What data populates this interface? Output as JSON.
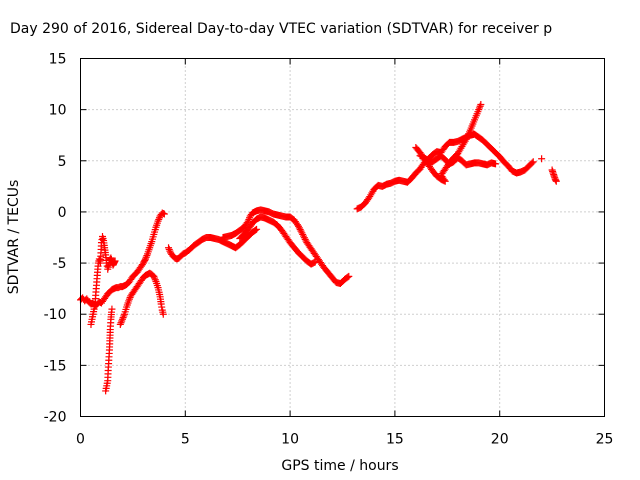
{
  "chart_data": {
    "type": "scatter",
    "title": "Day 290 of 2016, Sidereal Day-to-day VTEC variation (SDTVAR) for receiver p",
    "xlabel": "GPS time / hours",
    "ylabel": "SDTVAR / TECUs",
    "xlim": [
      0,
      25
    ],
    "ylim": [
      -20,
      15
    ],
    "xticks": [
      "0",
      "5",
      "10",
      "15",
      "20",
      "25"
    ],
    "yticks": [
      "15",
      "10",
      "5",
      "0",
      "-5",
      "-10",
      "-15",
      "-20"
    ],
    "grid": true,
    "marker": "plus",
    "color": "#ff0000",
    "series": [
      {
        "segments": [
          [
            [
              0.0,
              -8.6
            ],
            [
              0.1,
              -8.4
            ],
            [
              0.2,
              -8.7
            ],
            [
              0.3,
              -8.5
            ],
            [
              0.4,
              -8.8
            ],
            [
              0.5,
              -9.0
            ],
            [
              0.6,
              -8.9
            ],
            [
              0.7,
              -9.2
            ],
            [
              0.8,
              -9.0
            ],
            [
              0.9,
              -8.8
            ],
            [
              1.0,
              -8.9
            ],
            [
              1.1,
              -8.6
            ],
            [
              1.2,
              -8.3
            ],
            [
              1.3,
              -8.0
            ],
            [
              1.4,
              -7.8
            ],
            [
              1.5,
              -7.6
            ],
            [
              1.6,
              -7.5
            ],
            [
              1.7,
              -7.4
            ],
            [
              1.8,
              -7.4
            ],
            [
              1.9,
              -7.3
            ],
            [
              2.0,
              -7.3
            ],
            [
              2.1,
              -7.2
            ],
            [
              2.2,
              -7.1
            ],
            [
              2.3,
              -6.9
            ],
            [
              2.4,
              -6.6
            ],
            [
              2.5,
              -6.3
            ],
            [
              2.6,
              -6.1
            ],
            [
              2.7,
              -5.9
            ],
            [
              2.8,
              -5.6
            ],
            [
              2.9,
              -5.3
            ],
            [
              3.0,
              -5.0
            ],
            [
              3.1,
              -4.6
            ],
            [
              3.2,
              -4.1
            ],
            [
              3.3,
              -3.5
            ],
            [
              3.4,
              -2.9
            ],
            [
              3.5,
              -2.2
            ],
            [
              3.6,
              -1.5
            ],
            [
              3.7,
              -0.9
            ],
            [
              3.8,
              -0.4
            ],
            [
              3.9,
              -0.1
            ],
            [
              4.0,
              -0.2
            ]
          ],
          [
            [
              0.5,
              -11.0
            ],
            [
              0.55,
              -10.5
            ],
            [
              0.6,
              -10.0
            ],
            [
              0.65,
              -9.5
            ],
            [
              0.7,
              -8.8
            ],
            [
              0.75,
              -7.5
            ],
            [
              0.8,
              -6.2
            ],
            [
              0.85,
              -5.0
            ],
            [
              0.9,
              -4.6
            ],
            [
              0.95,
              -5.0
            ],
            [
              1.0,
              -3.0
            ],
            [
              1.05,
              -2.4
            ],
            [
              1.1,
              -2.8
            ],
            [
              1.15,
              -3.5
            ],
            [
              1.2,
              -4.2
            ],
            [
              1.25,
              -5.0
            ],
            [
              1.3,
              -5.6
            ],
            [
              1.35,
              -5.2
            ],
            [
              1.4,
              -4.7
            ],
            [
              1.45,
              -4.5
            ],
            [
              1.5,
              -4.8
            ],
            [
              1.55,
              -5.2
            ],
            [
              1.6,
              -5.0
            ],
            [
              1.65,
              -4.8
            ]
          ],
          [
            [
              1.2,
              -17.5
            ],
            [
              1.25,
              -17.0
            ],
            [
              1.3,
              -16.5
            ],
            [
              1.32,
              -15.5
            ],
            [
              1.35,
              -14.5
            ],
            [
              1.38,
              -13.5
            ],
            [
              1.4,
              -12.6
            ],
            [
              1.42,
              -11.5
            ],
            [
              1.45,
              -10.5
            ],
            [
              1.48,
              -9.8
            ],
            [
              1.5,
              -9.5
            ]
          ],
          [
            [
              1.9,
              -11.0
            ],
            [
              2.0,
              -10.5
            ],
            [
              2.1,
              -10.0
            ],
            [
              2.2,
              -9.3
            ],
            [
              2.3,
              -8.7
            ],
            [
              2.4,
              -8.2
            ],
            [
              2.5,
              -7.9
            ],
            [
              2.6,
              -7.6
            ],
            [
              2.7,
              -7.3
            ],
            [
              2.8,
              -7.0
            ],
            [
              2.9,
              -6.7
            ],
            [
              3.0,
              -6.4
            ],
            [
              3.1,
              -6.2
            ],
            [
              3.2,
              -6.1
            ],
            [
              3.3,
              -6.0
            ],
            [
              3.4,
              -6.1
            ],
            [
              3.5,
              -6.3
            ],
            [
              3.6,
              -6.8
            ],
            [
              3.7,
              -7.4
            ],
            [
              3.8,
              -8.3
            ],
            [
              3.85,
              -9.0
            ],
            [
              3.9,
              -9.6
            ],
            [
              3.95,
              -10.0
            ]
          ],
          [
            [
              4.2,
              -3.5
            ],
            [
              4.3,
              -4.0
            ],
            [
              4.4,
              -4.3
            ],
            [
              4.5,
              -4.5
            ],
            [
              4.6,
              -4.6
            ],
            [
              4.7,
              -4.5
            ],
            [
              4.8,
              -4.3
            ],
            [
              4.9,
              -4.1
            ],
            [
              5.0,
              -4.0
            ],
            [
              5.2,
              -3.7
            ],
            [
              5.4,
              -3.3
            ],
            [
              5.6,
              -3.0
            ],
            [
              5.8,
              -2.7
            ],
            [
              6.0,
              -2.5
            ],
            [
              6.2,
              -2.5
            ],
            [
              6.4,
              -2.6
            ],
            [
              6.6,
              -2.7
            ],
            [
              6.8,
              -2.9
            ],
            [
              7.0,
              -3.1
            ],
            [
              7.2,
              -3.3
            ],
            [
              7.4,
              -3.5
            ],
            [
              7.6,
              -3.2
            ],
            [
              7.8,
              -2.8
            ],
            [
              8.0,
              -2.4
            ],
            [
              8.2,
              -2.0
            ],
            [
              8.4,
              -1.7
            ]
          ],
          [
            [
              6.8,
              -2.5
            ],
            [
              7.0,
              -2.4
            ],
            [
              7.2,
              -2.3
            ],
            [
              7.4,
              -2.1
            ],
            [
              7.6,
              -1.8
            ],
            [
              7.8,
              -1.5
            ],
            [
              8.0,
              -0.9
            ],
            [
              8.1,
              -0.4
            ],
            [
              8.2,
              -0.1
            ],
            [
              8.4,
              0.1
            ],
            [
              8.6,
              0.2
            ],
            [
              8.8,
              0.1
            ],
            [
              9.0,
              0.0
            ],
            [
              9.2,
              -0.2
            ],
            [
              9.4,
              -0.3
            ],
            [
              9.6,
              -0.4
            ],
            [
              9.8,
              -0.5
            ],
            [
              10.0,
              -0.5
            ],
            [
              10.2,
              -0.8
            ],
            [
              10.4,
              -1.4
            ],
            [
              10.6,
              -2.2
            ],
            [
              10.8,
              -3.0
            ],
            [
              11.0,
              -3.6
            ],
            [
              11.2,
              -4.2
            ],
            [
              11.4,
              -4.8
            ],
            [
              11.6,
              -5.4
            ],
            [
              11.8,
              -5.9
            ],
            [
              12.0,
              -6.4
            ],
            [
              12.2,
              -6.9
            ],
            [
              12.4,
              -7.0
            ],
            [
              12.6,
              -6.6
            ],
            [
              12.8,
              -6.3
            ]
          ],
          [
            [
              7.6,
              -2.6
            ],
            [
              7.8,
              -2.2
            ],
            [
              8.0,
              -1.7
            ],
            [
              8.2,
              -1.1
            ],
            [
              8.4,
              -0.7
            ],
            [
              8.6,
              -0.5
            ],
            [
              8.8,
              -0.6
            ],
            [
              9.0,
              -0.8
            ],
            [
              9.2,
              -1.0
            ],
            [
              9.4,
              -1.3
            ],
            [
              9.6,
              -1.8
            ],
            [
              9.8,
              -2.4
            ],
            [
              10.0,
              -3.0
            ],
            [
              10.2,
              -3.5
            ],
            [
              10.4,
              -4.0
            ],
            [
              10.6,
              -4.4
            ],
            [
              10.8,
              -4.8
            ],
            [
              11.0,
              -5.1
            ],
            [
              11.2,
              -4.9
            ]
          ],
          [
            [
              13.2,
              0.3
            ],
            [
              13.4,
              0.5
            ],
            [
              13.6,
              0.9
            ],
            [
              13.8,
              1.5
            ],
            [
              14.0,
              2.2
            ],
            [
              14.2,
              2.6
            ],
            [
              14.4,
              2.5
            ],
            [
              14.6,
              2.7
            ],
            [
              14.8,
              2.8
            ],
            [
              15.0,
              3.0
            ],
            [
              15.2,
              3.1
            ],
            [
              15.4,
              3.0
            ],
            [
              15.6,
              2.9
            ],
            [
              15.8,
              3.3
            ],
            [
              16.0,
              3.8
            ],
            [
              16.2,
              4.2
            ],
            [
              16.4,
              4.8
            ],
            [
              16.6,
              5.2
            ],
            [
              16.8,
              5.6
            ],
            [
              17.0,
              5.9
            ],
            [
              17.2,
              5.8
            ],
            [
              17.4,
              6.4
            ],
            [
              17.6,
              6.8
            ],
            [
              17.8,
              6.8
            ],
            [
              18.0,
              6.9
            ],
            [
              18.2,
              7.1
            ],
            [
              18.4,
              7.3
            ],
            [
              18.6,
              7.5
            ],
            [
              18.8,
              7.6
            ],
            [
              19.0,
              7.3
            ],
            [
              19.2,
              7.0
            ],
            [
              19.4,
              6.6
            ],
            [
              19.6,
              6.2
            ],
            [
              19.8,
              5.8
            ],
            [
              20.0,
              5.4
            ],
            [
              20.2,
              4.9
            ],
            [
              20.4,
              4.5
            ],
            [
              20.6,
              4.0
            ],
            [
              20.8,
              3.8
            ],
            [
              21.0,
              3.9
            ],
            [
              21.2,
              4.1
            ],
            [
              21.4,
              4.5
            ],
            [
              21.6,
              4.9
            ]
          ],
          [
            [
              16.0,
              6.3
            ],
            [
              16.2,
              5.8
            ],
            [
              16.4,
              5.2
            ],
            [
              16.6,
              4.6
            ],
            [
              16.8,
              4.0
            ],
            [
              17.0,
              3.5
            ],
            [
              17.2,
              3.2
            ],
            [
              17.4,
              3.0
            ],
            [
              17.2,
              3.6
            ],
            [
              17.4,
              4.2
            ],
            [
              17.6,
              4.8
            ],
            [
              17.8,
              5.3
            ],
            [
              18.0,
              5.7
            ],
            [
              18.2,
              6.4
            ],
            [
              18.4,
              7.1
            ],
            [
              18.6,
              8.0
            ],
            [
              18.8,
              9.0
            ],
            [
              19.0,
              10.0
            ],
            [
              19.1,
              10.5
            ]
          ],
          [
            [
              16.2,
              5.5
            ],
            [
              16.4,
              5.3
            ],
            [
              16.6,
              5.0
            ],
            [
              16.8,
              4.9
            ],
            [
              17.0,
              5.2
            ],
            [
              17.2,
              5.5
            ],
            [
              17.4,
              5.1
            ],
            [
              17.6,
              4.7
            ],
            [
              17.8,
              4.9
            ],
            [
              18.0,
              5.3
            ],
            [
              18.2,
              5.0
            ],
            [
              18.4,
              4.6
            ],
            [
              18.6,
              4.7
            ],
            [
              18.8,
              4.8
            ],
            [
              19.0,
              4.8
            ],
            [
              19.2,
              4.7
            ],
            [
              19.4,
              4.6
            ],
            [
              19.6,
              4.8
            ],
            [
              19.8,
              4.7
            ]
          ],
          [
            [
              22.0,
              5.2
            ]
          ],
          [
            [
              22.5,
              4.1
            ],
            [
              22.55,
              3.8
            ],
            [
              22.6,
              3.5
            ],
            [
              22.65,
              3.2
            ],
            [
              22.7,
              3.0
            ]
          ]
        ]
      }
    ]
  }
}
